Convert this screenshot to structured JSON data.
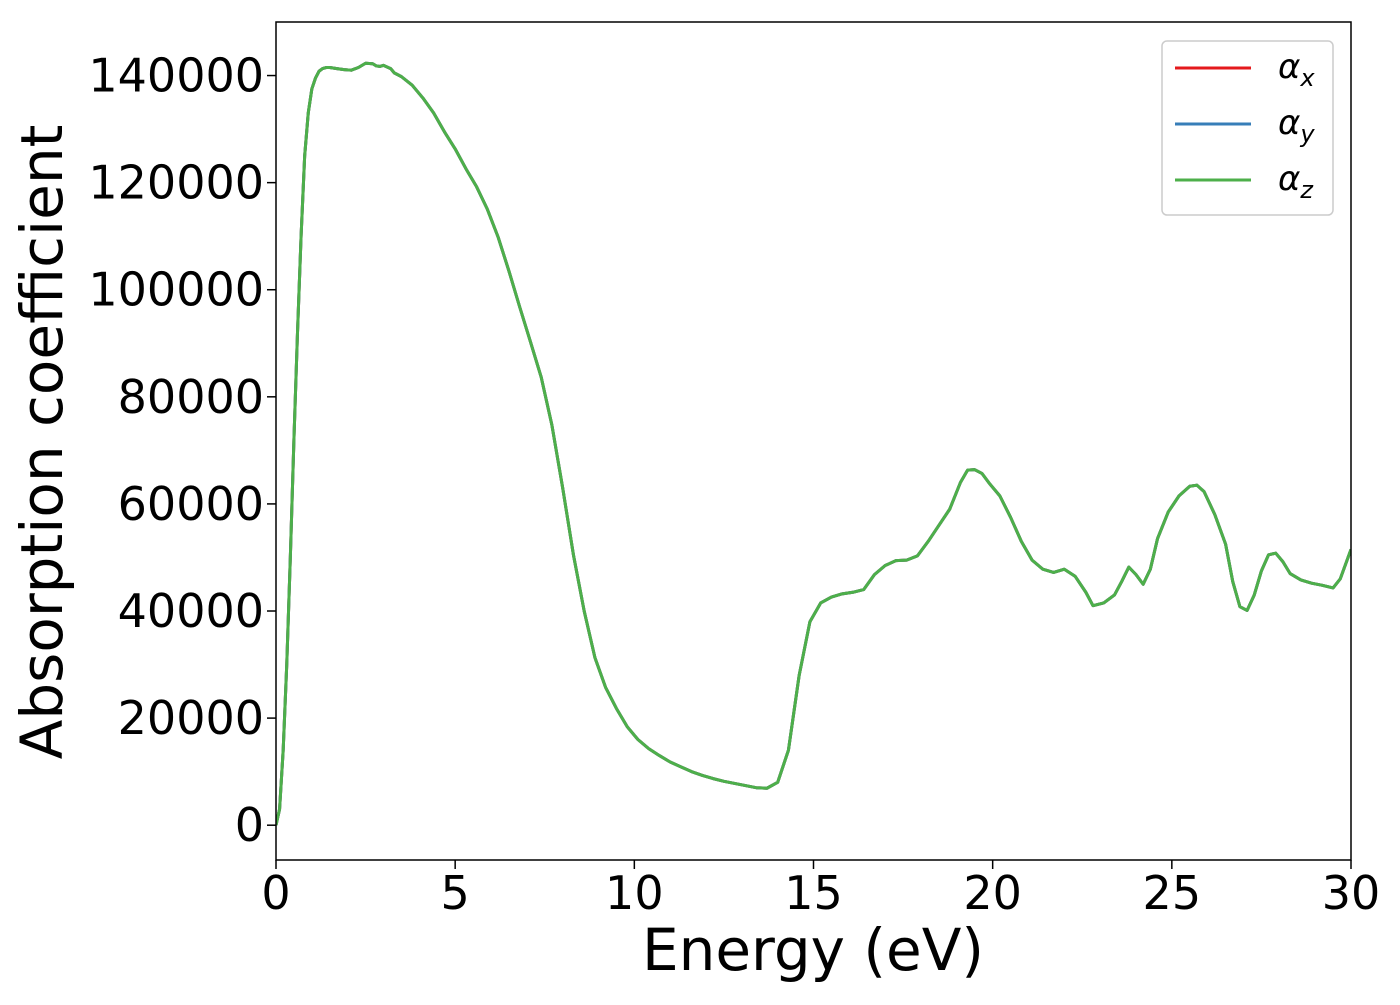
{
  "chart_data": {
    "type": "line",
    "title": "",
    "xlabel": "Energy (eV)",
    "ylabel": "Absorption coefficient",
    "xlim": [
      0,
      30
    ],
    "ylim": [
      -6500,
      150000
    ],
    "xticks": [
      0,
      5,
      10,
      15,
      20,
      25,
      30
    ],
    "yticks": [
      0,
      20000,
      40000,
      60000,
      80000,
      100000,
      120000,
      140000
    ],
    "grid": false,
    "legend_position": "top-right",
    "x": [
      0,
      0.1,
      0.2,
      0.3,
      0.4,
      0.5,
      0.6,
      0.7,
      0.8,
      0.9,
      1.0,
      1.1,
      1.2,
      1.3,
      1.4,
      1.5,
      1.7,
      1.9,
      2.1,
      2.3,
      2.5,
      2.7,
      2.8,
      2.9,
      3.0,
      3.2,
      3.3,
      3.5,
      3.8,
      4.1,
      4.4,
      4.7,
      5.0,
      5.3,
      5.6,
      5.9,
      6.2,
      6.5,
      6.8,
      7.1,
      7.4,
      7.7,
      8.0,
      8.3,
      8.6,
      8.9,
      9.2,
      9.5,
      9.8,
      10.1,
      10.4,
      10.7,
      11.0,
      11.3,
      11.6,
      11.9,
      12.2,
      12.5,
      12.8,
      13.1,
      13.4,
      13.7,
      14.0,
      14.3,
      14.6,
      14.9,
      15.2,
      15.5,
      15.8,
      16.1,
      16.4,
      16.7,
      17.0,
      17.3,
      17.6,
      17.9,
      18.2,
      18.5,
      18.8,
      19.1,
      19.3,
      19.5,
      19.7,
      19.9,
      20.2,
      20.5,
      20.8,
      21.1,
      21.4,
      21.7,
      22.0,
      22.3,
      22.6,
      22.8,
      23.1,
      23.4,
      23.6,
      23.8,
      24.0,
      24.2,
      24.4,
      24.6,
      24.9,
      25.2,
      25.5,
      25.7,
      25.9,
      26.2,
      26.5,
      26.7,
      26.9,
      27.1,
      27.3,
      27.5,
      27.7,
      27.9,
      28.1,
      28.3,
      28.6,
      28.9,
      29.2,
      29.5,
      29.7,
      30.0
    ],
    "series": [
      {
        "name": "α_x",
        "color": "#e41a1c",
        "values": [
          0,
          3000,
          14000,
          30000,
          50000,
          72000,
          92000,
          110000,
          125000,
          133000,
          137500,
          139500,
          140800,
          141300,
          141500,
          141500,
          141300,
          141100,
          141000,
          141500,
          142300,
          142200,
          141800,
          141700,
          141900,
          141300,
          140500,
          139800,
          138200,
          135800,
          133000,
          129500,
          126300,
          122600,
          119200,
          115000,
          109800,
          103500,
          96800,
          90300,
          83700,
          74700,
          63000,
          50500,
          40000,
          31300,
          25700,
          21800,
          18400,
          16000,
          14300,
          13000,
          11800,
          10900,
          10000,
          9300,
          8700,
          8200,
          7800,
          7400,
          7000,
          6900,
          8000,
          14000,
          28000,
          38000,
          41500,
          42600,
          43200,
          43500,
          44000,
          46800,
          48500,
          49400,
          49500,
          50300,
          53000,
          56000,
          59000,
          64000,
          66300,
          66400,
          65700,
          63900,
          61500,
          57500,
          53000,
          49500,
          47800,
          47200,
          47800,
          46500,
          43500,
          41000,
          41500,
          43000,
          45500,
          48200,
          46800,
          45000,
          47800,
          53500,
          58500,
          61500,
          63300,
          63500,
          62300,
          58000,
          52500,
          45500,
          40800,
          40100,
          43000,
          47500,
          50500,
          50800,
          49200,
          47000,
          45800,
          45200,
          44800,
          44300,
          46000,
          51500
        ]
      },
      {
        "name": "α_y",
        "color": "#377eb8",
        "values": [
          0,
          3000,
          14000,
          30000,
          50000,
          72000,
          92000,
          110000,
          125000,
          133000,
          137500,
          139500,
          140800,
          141300,
          141500,
          141500,
          141300,
          141100,
          141000,
          141500,
          142300,
          142200,
          141800,
          141700,
          141900,
          141300,
          140500,
          139800,
          138200,
          135800,
          133000,
          129500,
          126300,
          122600,
          119200,
          115000,
          109800,
          103500,
          96800,
          90300,
          83700,
          74700,
          63000,
          50500,
          40000,
          31300,
          25700,
          21800,
          18400,
          16000,
          14300,
          13000,
          11800,
          10900,
          10000,
          9300,
          8700,
          8200,
          7800,
          7400,
          7000,
          6900,
          8000,
          14000,
          28000,
          38000,
          41500,
          42600,
          43200,
          43500,
          44000,
          46800,
          48500,
          49400,
          49500,
          50300,
          53000,
          56000,
          59000,
          64000,
          66300,
          66400,
          65700,
          63900,
          61500,
          57500,
          53000,
          49500,
          47800,
          47200,
          47800,
          46500,
          43500,
          41000,
          41500,
          43000,
          45500,
          48200,
          46800,
          45000,
          47800,
          53500,
          58500,
          61500,
          63300,
          63500,
          62300,
          58000,
          52500,
          45500,
          40800,
          40100,
          43000,
          47500,
          50500,
          50800,
          49200,
          47000,
          45800,
          45200,
          44800,
          44300,
          46000,
          51500
        ]
      },
      {
        "name": "α_z",
        "color": "#4daf4a",
        "values": [
          0,
          3000,
          14000,
          30000,
          50000,
          72000,
          92000,
          110000,
          125000,
          133000,
          137500,
          139500,
          140800,
          141300,
          141500,
          141500,
          141300,
          141100,
          141000,
          141500,
          142300,
          142200,
          141800,
          141700,
          141900,
          141300,
          140500,
          139800,
          138200,
          135800,
          133000,
          129500,
          126300,
          122600,
          119200,
          115000,
          109800,
          103500,
          96800,
          90300,
          83700,
          74700,
          63000,
          50500,
          40000,
          31300,
          25700,
          21800,
          18400,
          16000,
          14300,
          13000,
          11800,
          10900,
          10000,
          9300,
          8700,
          8200,
          7800,
          7400,
          7000,
          6900,
          8000,
          14000,
          28000,
          38000,
          41500,
          42600,
          43200,
          43500,
          44000,
          46800,
          48500,
          49400,
          49500,
          50300,
          53000,
          56000,
          59000,
          64000,
          66300,
          66400,
          65700,
          63900,
          61500,
          57500,
          53000,
          49500,
          47800,
          47200,
          47800,
          46500,
          43500,
          41000,
          41500,
          43000,
          45500,
          48200,
          46800,
          45000,
          47800,
          53500,
          58500,
          61500,
          63300,
          63500,
          62300,
          58000,
          52500,
          45500,
          40800,
          40100,
          43000,
          47500,
          50500,
          50800,
          49200,
          47000,
          45800,
          45200,
          44800,
          44300,
          46000,
          51500
        ]
      }
    ],
    "legend": [
      {
        "symbol": "α",
        "subscript": "x"
      },
      {
        "symbol": "α",
        "subscript": "y"
      },
      {
        "symbol": "α",
        "subscript": "z"
      }
    ]
  }
}
